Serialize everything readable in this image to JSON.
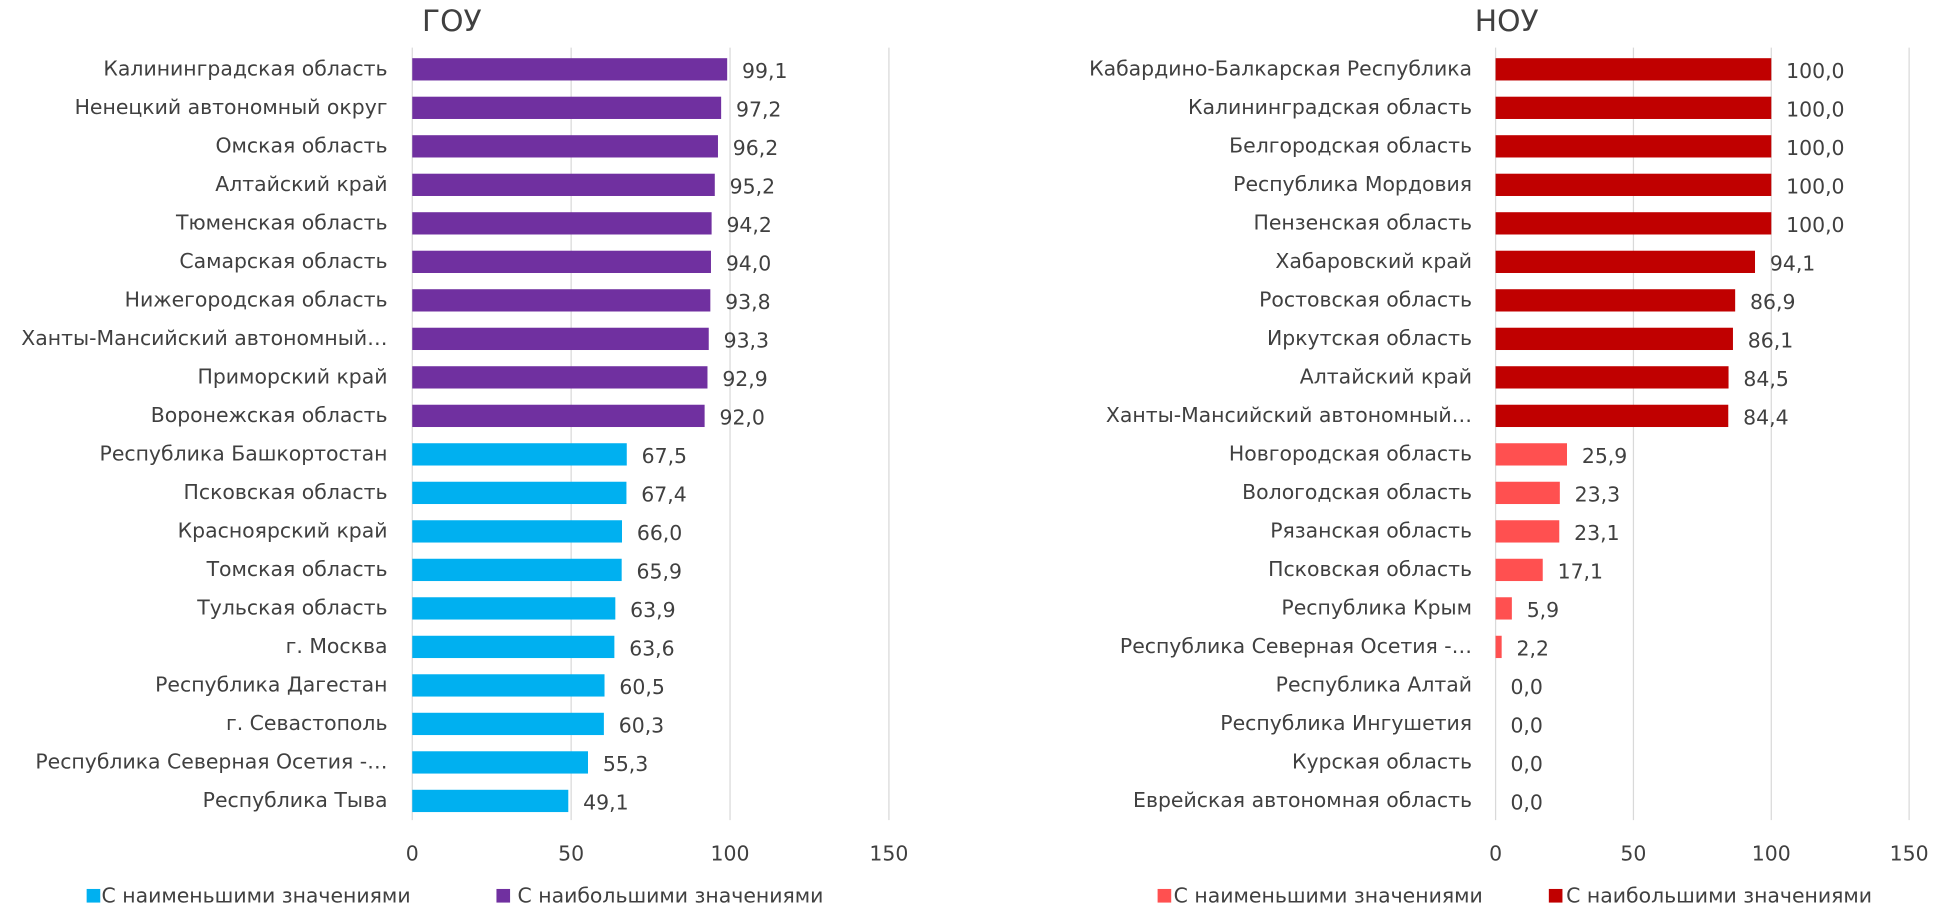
{
  "chart_data": [
    {
      "type": "bar",
      "orientation": "horizontal",
      "title": "ГОУ",
      "categories": [
        "Калининградская область",
        "Ненецкий автономный округ",
        "Омская область",
        "Алтайский край",
        "Тюменская область",
        "Самарская область",
        "Нижегородская область",
        "Ханты-Мансийский автономный…",
        "Приморский край",
        "Воронежская область",
        "Республика Башкортостан",
        "Псковская область",
        "Красноярский край",
        "Томская область",
        "Тульская область",
        "г. Москва",
        "Республика Дагестан",
        "г. Севастополь",
        "Республика Северная Осетия -…",
        "Республика Тыва"
      ],
      "series": [
        {
          "name": "С наименьшими значениями",
          "color": "#00b0f0",
          "values": [
            null,
            null,
            null,
            null,
            null,
            null,
            null,
            null,
            null,
            null,
            67.5,
            67.4,
            66.0,
            65.9,
            63.9,
            63.6,
            60.5,
            60.3,
            55.3,
            49.1
          ],
          "value_labels": [
            null,
            null,
            null,
            null,
            null,
            null,
            null,
            null,
            null,
            null,
            "67,5",
            "67,4",
            "66,0",
            "65,9",
            "63,9",
            "63,6",
            "60,5",
            "60,3",
            "55,3",
            "49,1"
          ]
        },
        {
          "name": "С наибольшими значениями",
          "color": "#7030a0",
          "values": [
            99.1,
            97.2,
            96.2,
            95.2,
            94.2,
            94.0,
            93.8,
            93.3,
            92.9,
            92.0,
            null,
            null,
            null,
            null,
            null,
            null,
            null,
            null,
            null,
            null
          ],
          "value_labels": [
            "99,1",
            "97,2",
            "96,2",
            "95,2",
            "94,2",
            "94,0",
            "93,8",
            "93,3",
            "92,9",
            "92,0",
            null,
            null,
            null,
            null,
            null,
            null,
            null,
            null,
            null,
            null
          ]
        }
      ],
      "xlim": [
        0,
        150
      ],
      "xticks": [
        0,
        50,
        100,
        150
      ],
      "grid": true,
      "legend": "bottom"
    },
    {
      "type": "bar",
      "orientation": "horizontal",
      "title": "НОУ",
      "categories": [
        "Кабардино-Балкарская Республика",
        "Калининградская область",
        "Белгородская область",
        "Республика Мордовия",
        "Пензенская область",
        "Хабаровский край",
        "Ростовская область",
        "Иркутская область",
        "Алтайский край",
        "Ханты-Мансийский автономный…",
        "Новгородская область",
        "Вологодская область",
        "Рязанская область",
        "Псковская область",
        "Республика Крым",
        "Республика Северная Осетия -…",
        "Республика Алтай",
        "Республика Ингушетия",
        "Курская область",
        "Еврейская автономная область"
      ],
      "series": [
        {
          "name": "С наименьшими значениями",
          "color": "#ff5050",
          "values": [
            null,
            null,
            null,
            null,
            null,
            null,
            null,
            null,
            null,
            null,
            25.9,
            23.3,
            23.1,
            17.1,
            5.9,
            2.2,
            0.0,
            0.0,
            0.0,
            0.0
          ],
          "value_labels": [
            null,
            null,
            null,
            null,
            null,
            null,
            null,
            null,
            null,
            null,
            "25,9",
            "23,3",
            "23,1",
            "17,1",
            "5,9",
            "2,2",
            "0,0",
            "0,0",
            "0,0",
            "0,0"
          ]
        },
        {
          "name": "С наибольшими значениями",
          "color": "#c00000",
          "values": [
            100.0,
            100.0,
            100.0,
            100.0,
            100.0,
            94.1,
            86.9,
            86.1,
            84.5,
            84.4,
            null,
            null,
            null,
            null,
            null,
            null,
            null,
            null,
            null,
            null
          ],
          "value_labels": [
            "100,0",
            "100,0",
            "100,0",
            "100,0",
            "100,0",
            "94,1",
            "86,9",
            "86,1",
            "84,5",
            "84,4",
            null,
            null,
            null,
            null,
            null,
            null,
            null,
            null,
            null,
            null
          ]
        }
      ],
      "xlim": [
        0,
        150
      ],
      "xticks": [
        0,
        50,
        100,
        150
      ],
      "grid": true,
      "legend": "bottom"
    }
  ]
}
